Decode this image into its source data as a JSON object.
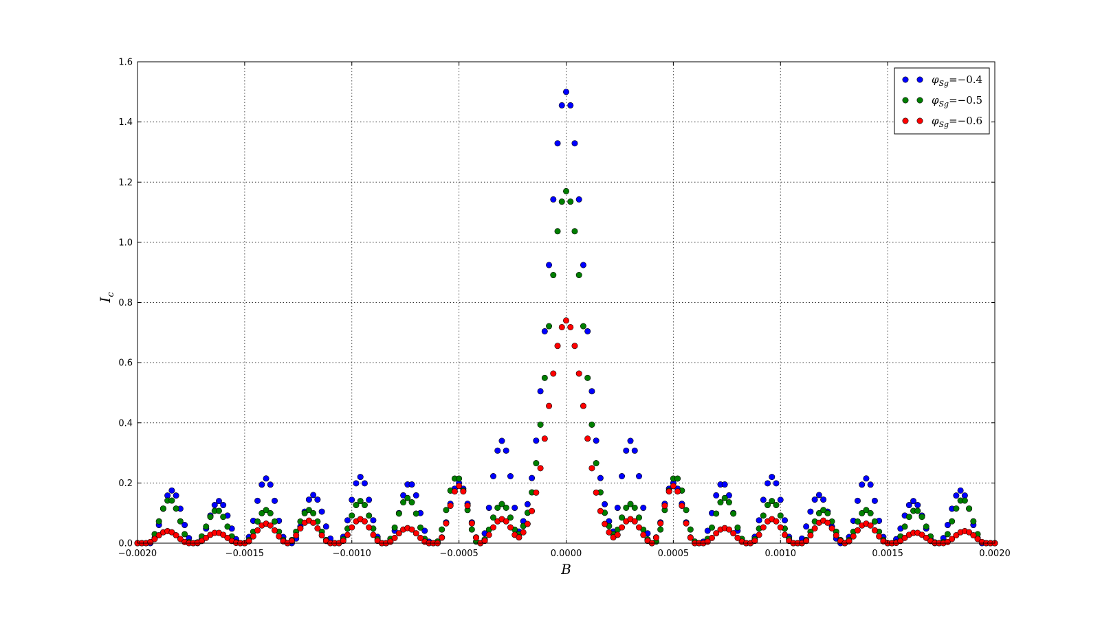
{
  "chart_data": {
    "type": "scatter",
    "xlabel": "B",
    "ylabel": "I",
    "ylabel_sub": "c",
    "xlim": [
      -0.002,
      0.002
    ],
    "ylim": [
      0,
      1.6
    ],
    "x_ticks": [
      "−0.0020",
      "−0.0015",
      "−0.0010",
      "−0.0005",
      "0.0000",
      "0.0005",
      "0.0010",
      "0.0015",
      "0.0020"
    ],
    "x_tick_values": [
      -0.002,
      -0.0015,
      -0.001,
      -0.0005,
      0,
      0.0005,
      0.001,
      0.0015,
      0.002
    ],
    "y_ticks": [
      "0.0",
      "0.2",
      "0.4",
      "0.6",
      "0.8",
      "1.0",
      "1.2",
      "1.4",
      "1.6"
    ],
    "y_tick_values": [
      0,
      0.2,
      0.4,
      0.6,
      0.8,
      1.0,
      1.2,
      1.4,
      1.6
    ],
    "grid": true,
    "legend_position": "top-right",
    "sampling": {
      "x_start": -0.002,
      "x_end": 0.002,
      "count": 201
    },
    "series": [
      {
        "name": "φSg=−0.4",
        "legend_var": "φ",
        "legend_sub": "Sg",
        "legend_eq": "=−0.4",
        "color": "#0000ff",
        "peak": 1.5,
        "sidelobe_peaks": [
          {
            "x": 0.0003,
            "y": 0.34
          },
          {
            "x": 0.0005,
            "y": 0.2
          },
          {
            "x": 0.00073,
            "y": 0.2
          },
          {
            "x": 0.00096,
            "y": 0.22
          },
          {
            "x": 0.00118,
            "y": 0.16
          },
          {
            "x": 0.0014,
            "y": 0.215
          },
          {
            "x": 0.00162,
            "y": 0.14
          },
          {
            "x": 0.00184,
            "y": 0.175
          }
        ]
      },
      {
        "name": "φSg=−0.5",
        "legend_var": "φ",
        "legend_sub": "Sg",
        "legend_eq": "=−0.5",
        "color": "#007f00",
        "peak": 1.17,
        "sidelobe_peaks": [
          {
            "x": 0.0003,
            "y": 0.13
          },
          {
            "x": 0.00051,
            "y": 0.22
          },
          {
            "x": 0.00074,
            "y": 0.15
          },
          {
            "x": 0.00096,
            "y": 0.14
          },
          {
            "x": 0.0012,
            "y": 0.11
          },
          {
            "x": 0.0014,
            "y": 0.11
          },
          {
            "x": 0.00163,
            "y": 0.11
          },
          {
            "x": 0.00185,
            "y": 0.145
          }
        ]
      },
      {
        "name": "φSg=−0.6",
        "legend_var": "φ",
        "legend_sub": "Sg",
        "legend_eq": "=−0.6",
        "color": "#ff0000",
        "peak": 0.74,
        "sidelobe_peaks": [
          {
            "x": 0.0003,
            "y": 0.08
          },
          {
            "x": 0.0005,
            "y": 0.19
          },
          {
            "x": 0.00074,
            "y": 0.05
          },
          {
            "x": 0.00096,
            "y": 0.08
          },
          {
            "x": 0.0012,
            "y": 0.075
          },
          {
            "x": 0.0014,
            "y": 0.065
          },
          {
            "x": 0.00163,
            "y": 0.035
          },
          {
            "x": 0.00186,
            "y": 0.04
          }
        ]
      }
    ]
  }
}
